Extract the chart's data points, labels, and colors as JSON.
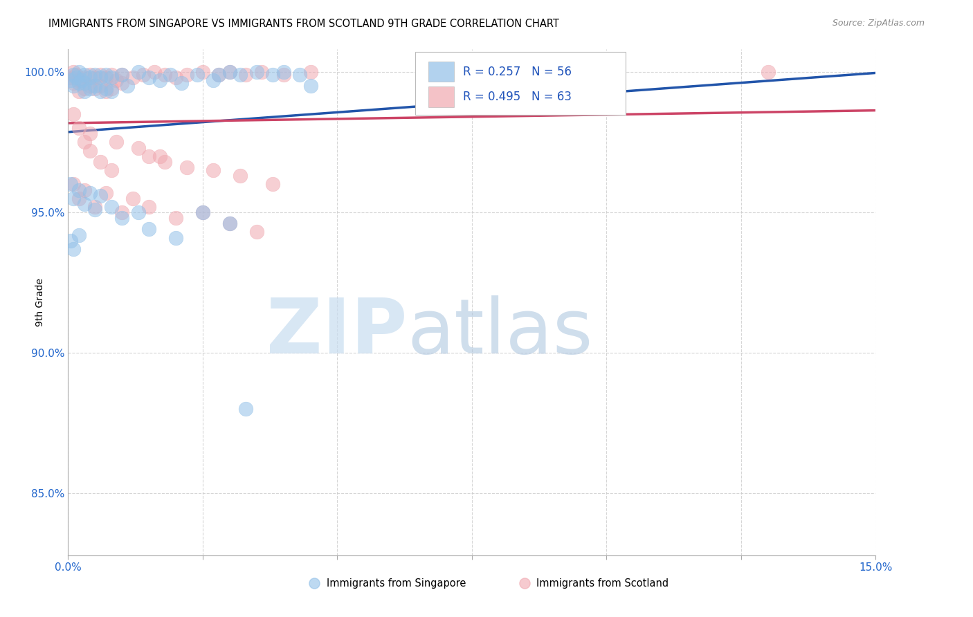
{
  "title": "IMMIGRANTS FROM SINGAPORE VS IMMIGRANTS FROM SCOTLAND 9TH GRADE CORRELATION CHART",
  "source": "Source: ZipAtlas.com",
  "ylabel": "9th Grade",
  "ylabel_ticks": [
    "85.0%",
    "90.0%",
    "95.0%",
    "100.0%"
  ],
  "ylabel_tick_vals": [
    0.85,
    0.9,
    0.95,
    1.0
  ],
  "xmin": 0.0,
  "xmax": 0.15,
  "ymin": 0.828,
  "ymax": 1.008,
  "legend_singapore": "Immigrants from Singapore",
  "legend_scotland": "Immigrants from Scotland",
  "R_singapore": 0.257,
  "N_singapore": 56,
  "R_scotland": 0.495,
  "N_scotland": 63,
  "color_singapore": "#92c0e8",
  "color_scotland": "#f0a8b0",
  "color_singapore_line": "#2255aa",
  "color_scotland_line": "#cc4466",
  "watermark_zip_color": "#c8ddf0",
  "watermark_atlas_color": "#b0c8e0",
  "bg_color": "#ffffff"
}
